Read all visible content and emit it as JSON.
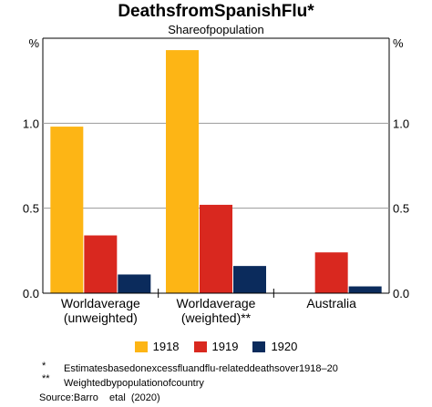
{
  "chart_data": {
    "type": "bar",
    "title": "DeathsfromSpanishFlu*",
    "subtitle": "Shareofpopulation",
    "ylabel_left": "%",
    "ylabel_right": "%",
    "ylim": [
      0,
      1.45
    ],
    "yticks": [
      0.0,
      0.5,
      1.0
    ],
    "ytick_labels": [
      "0.0",
      "0.5",
      "1.0"
    ],
    "grid": true,
    "categories": [
      "Worldaverage|(unweighted)",
      "Worldaverage|(weighted)**",
      "Australia"
    ],
    "series": [
      {
        "name": "1918",
        "color": "#fdb515",
        "values": [
          0.98,
          1.43,
          null
        ]
      },
      {
        "name": "1919",
        "color": "#d9281f",
        "values": [
          0.34,
          0.52,
          0.24
        ]
      },
      {
        "name": "1920",
        "color": "#0b2b5c",
        "values": [
          0.11,
          0.16,
          0.04
        ]
      }
    ],
    "legend_position": "bottom"
  },
  "footnotes": [
    {
      "marker": "*",
      "text": "Estimatesbasedonexcessfluandflu-relateddeathsover1918–20"
    },
    {
      "marker": "**",
      "text": "Weightedbypopulationofcountry"
    }
  ],
  "source": "Source:Barro    etal  (2020)"
}
